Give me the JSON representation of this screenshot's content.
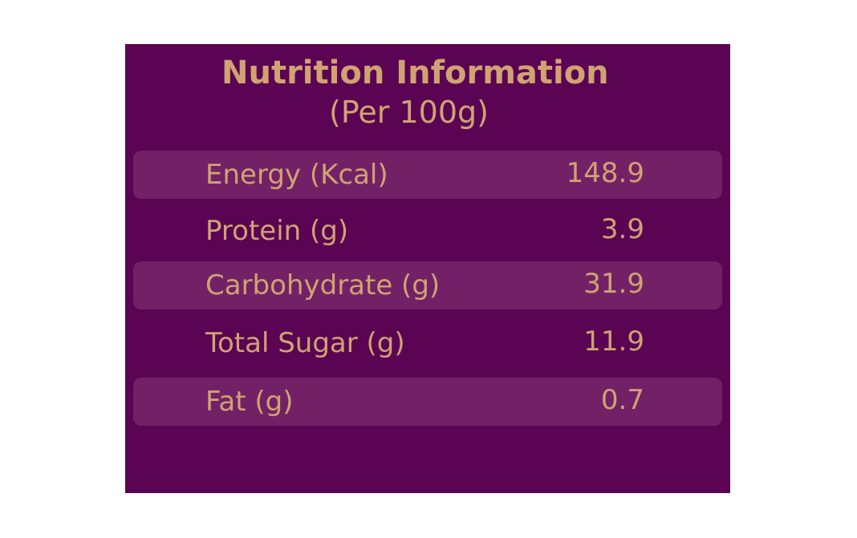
{
  "title": "Nutrition Information",
  "subtitle": "(Per 100g)",
  "rows": [
    {
      "label": "Energy (Kcal)",
      "value": "148.9"
    },
    {
      "label": "Protein (g)",
      "value": "3.9"
    },
    {
      "label": "Carbohydrate (g)",
      "value": "31.9"
    },
    {
      "label": "Total Sugar (g)",
      "value": "11.9"
    },
    {
      "label": "Fat (g)",
      "value": "0.7"
    }
  ],
  "colors": {
    "background": "#5b0453",
    "row_shade": "#732166",
    "text": "#cfa372"
  }
}
